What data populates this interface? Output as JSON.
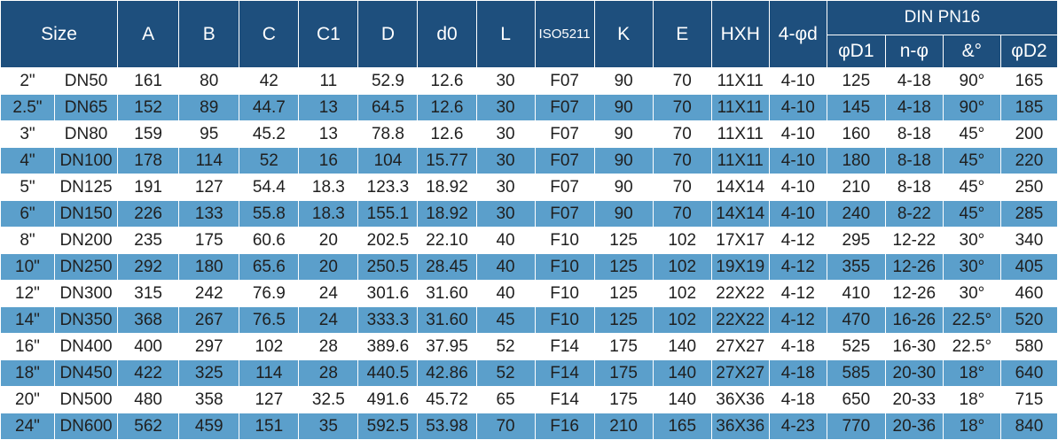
{
  "table": {
    "headers": {
      "size": "Size",
      "A": "A",
      "B": "B",
      "C": "C",
      "C1": "C1",
      "D": "D",
      "d0": "d0",
      "L": "L",
      "iso": "ISO5211",
      "K": "K",
      "E": "E",
      "hxh": "HXH",
      "holes": "4-φd",
      "din": "DIN PN16",
      "phiD1": "φD1",
      "nphi": "n-φ",
      "angle": "&°",
      "phiD2": "φD2"
    },
    "rows": [
      [
        "2\"",
        "DN50",
        "161",
        "80",
        "42",
        "11",
        "52.9",
        "12.6",
        "30",
        "F07",
        "90",
        "70",
        "11X11",
        "4-10",
        "125",
        "4-18",
        "90°",
        "165"
      ],
      [
        "2.5\"",
        "DN65",
        "152",
        "89",
        "44.7",
        "13",
        "64.5",
        "12.6",
        "30",
        "F07",
        "90",
        "70",
        "11X11",
        "4-10",
        "145",
        "4-18",
        "90°",
        "185"
      ],
      [
        "3\"",
        "DN80",
        "159",
        "95",
        "45.2",
        "13",
        "78.8",
        "12.6",
        "30",
        "F07",
        "90",
        "70",
        "11X11",
        "4-10",
        "160",
        "8-18",
        "45°",
        "200"
      ],
      [
        "4\"",
        "DN100",
        "178",
        "114",
        "52",
        "16",
        "104",
        "15.77",
        "30",
        "F07",
        "90",
        "70",
        "11X11",
        "4-10",
        "180",
        "8-18",
        "45°",
        "220"
      ],
      [
        "5\"",
        "DN125",
        "191",
        "127",
        "54.4",
        "18.3",
        "123.3",
        "18.92",
        "30",
        "F07",
        "90",
        "70",
        "14X14",
        "4-10",
        "210",
        "8-18",
        "45°",
        "250"
      ],
      [
        "6\"",
        "DN150",
        "226",
        "133",
        "55.8",
        "18.3",
        "155.1",
        "18.92",
        "30",
        "F07",
        "90",
        "70",
        "14X14",
        "4-10",
        "240",
        "8-22",
        "45°",
        "285"
      ],
      [
        "8\"",
        "DN200",
        "235",
        "175",
        "60.6",
        "20",
        "202.5",
        "22.10",
        "40",
        "F10",
        "125",
        "102",
        "17X17",
        "4-12",
        "295",
        "12-22",
        "30°",
        "340"
      ],
      [
        "10\"",
        "DN250",
        "292",
        "180",
        "65.6",
        "20",
        "250.5",
        "28.45",
        "40",
        "F10",
        "125",
        "102",
        "19X19",
        "4-12",
        "355",
        "12-26",
        "30°",
        "405"
      ],
      [
        "12\"",
        "DN300",
        "315",
        "242",
        "76.9",
        "24",
        "301.6",
        "31.60",
        "40",
        "F10",
        "125",
        "102",
        "22X22",
        "4-12",
        "410",
        "12-26",
        "30°",
        "460"
      ],
      [
        "14\"",
        "DN350",
        "368",
        "267",
        "76.5",
        "24",
        "333.3",
        "31.60",
        "45",
        "F10",
        "125",
        "102",
        "22X22",
        "4-12",
        "470",
        "16-26",
        "22.5°",
        "520"
      ],
      [
        "16\"",
        "DN400",
        "400",
        "297",
        "102",
        "28",
        "389.6",
        "37.95",
        "52",
        "F14",
        "175",
        "140",
        "27X27",
        "4-18",
        "525",
        "16-30",
        "22.5°",
        "580"
      ],
      [
        "18\"",
        "DN450",
        "422",
        "325",
        "114",
        "28",
        "440.5",
        "42.86",
        "52",
        "F14",
        "175",
        "140",
        "27X27",
        "4-18",
        "585",
        "20-30",
        "18°",
        "640"
      ],
      [
        "20\"",
        "DN500",
        "480",
        "358",
        "127",
        "32.5",
        "491.6",
        "45.72",
        "65",
        "F14",
        "175",
        "140",
        "36X36",
        "4-18",
        "650",
        "20-33",
        "18°",
        "715"
      ],
      [
        "24\"",
        "DN600",
        "562",
        "459",
        "151",
        "35",
        "592.5",
        "53.98",
        "70",
        "F16",
        "210",
        "165",
        "36X36",
        "4-23",
        "770",
        "20-36",
        "18°",
        "840"
      ]
    ]
  }
}
